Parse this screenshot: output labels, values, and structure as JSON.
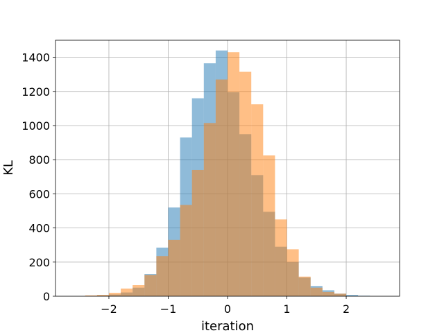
{
  "chart_data": {
    "type": "bar",
    "subtype": "overlaid-histogram",
    "xlabel": "iteration",
    "ylabel": "KL",
    "xlim": [
      -2.9,
      2.9
    ],
    "ylim": [
      0,
      1500
    ],
    "xticks": [
      -2,
      -1,
      0,
      1,
      2
    ],
    "xtick_labels": [
      "−2",
      "−1",
      "0",
      "1",
      "2"
    ],
    "yticks": [
      0,
      200,
      400,
      600,
      800,
      1000,
      1200,
      1400
    ],
    "ytick_labels": [
      "0",
      "200",
      "400",
      "600",
      "800",
      "1000",
      "1200",
      "1400"
    ],
    "grid": true,
    "bin_width": 0.2,
    "series": [
      {
        "color": "#1f77b4",
        "opacity": 0.5,
        "bins": [
          {
            "x0": -2.2,
            "count": 5
          },
          {
            "x0": -2.0,
            "count": 10
          },
          {
            "x0": -1.8,
            "count": 22
          },
          {
            "x0": -1.6,
            "count": 50
          },
          {
            "x0": -1.4,
            "count": 130
          },
          {
            "x0": -1.2,
            "count": 285
          },
          {
            "x0": -1.0,
            "count": 520
          },
          {
            "x0": -0.8,
            "count": 930
          },
          {
            "x0": -0.6,
            "count": 1160
          },
          {
            "x0": -0.4,
            "count": 1365
          },
          {
            "x0": -0.2,
            "count": 1440
          },
          {
            "x0": 0.0,
            "count": 1195
          },
          {
            "x0": 0.2,
            "count": 950
          },
          {
            "x0": 0.4,
            "count": 710
          },
          {
            "x0": 0.6,
            "count": 495
          },
          {
            "x0": 0.8,
            "count": 290
          },
          {
            "x0": 1.0,
            "count": 200
          },
          {
            "x0": 1.2,
            "count": 110
          },
          {
            "x0": 1.4,
            "count": 60
          },
          {
            "x0": 1.6,
            "count": 35
          },
          {
            "x0": 1.8,
            "count": 15
          },
          {
            "x0": 2.0,
            "count": 8
          },
          {
            "x0": 2.2,
            "count": 3
          }
        ]
      },
      {
        "color": "#ff7f0e",
        "opacity": 0.5,
        "bins": [
          {
            "x0": -2.4,
            "count": 5
          },
          {
            "x0": -2.2,
            "count": 8
          },
          {
            "x0": -2.0,
            "count": 20
          },
          {
            "x0": -1.8,
            "count": 45
          },
          {
            "x0": -1.6,
            "count": 65
          },
          {
            "x0": -1.4,
            "count": 125
          },
          {
            "x0": -1.2,
            "count": 235
          },
          {
            "x0": -1.0,
            "count": 330
          },
          {
            "x0": -0.8,
            "count": 535
          },
          {
            "x0": -0.6,
            "count": 740
          },
          {
            "x0": -0.4,
            "count": 1015
          },
          {
            "x0": -0.2,
            "count": 1270
          },
          {
            "x0": 0.0,
            "count": 1430
          },
          {
            "x0": 0.2,
            "count": 1315
          },
          {
            "x0": 0.4,
            "count": 1125
          },
          {
            "x0": 0.6,
            "count": 825
          },
          {
            "x0": 0.8,
            "count": 450
          },
          {
            "x0": 1.0,
            "count": 275
          },
          {
            "x0": 1.2,
            "count": 115
          },
          {
            "x0": 1.4,
            "count": 50
          },
          {
            "x0": 1.6,
            "count": 25
          },
          {
            "x0": 1.8,
            "count": 15
          }
        ]
      }
    ]
  }
}
